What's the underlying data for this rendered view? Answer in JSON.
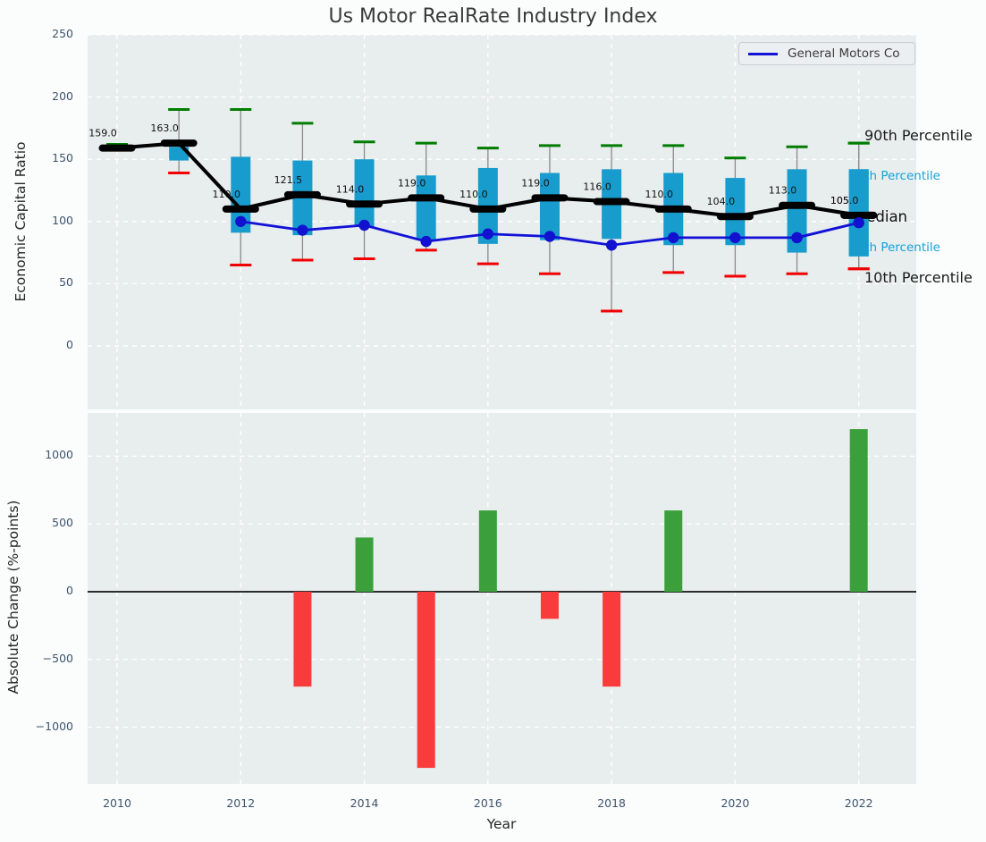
{
  "title": "Us Motor RealRate Industry Index",
  "top_chart": {
    "ylabel": "Economic Capital Ratio",
    "yticks": [
      {
        "v": 250,
        "label": "250"
      },
      {
        "v": 200,
        "label": "200"
      },
      {
        "v": 150,
        "label": "150"
      },
      {
        "v": 100,
        "label": "100"
      },
      {
        "v": 50,
        "label": "50"
      },
      {
        "v": 0,
        "label": "0"
      }
    ],
    "legend": {
      "label": "General Motors Co"
    },
    "right_labels": {
      "p90": "90th Percentile",
      "p75": "75th Percentile",
      "median": "Median",
      "p25": "25th Percentile",
      "p10": "10th Percentile"
    }
  },
  "bottom_chart": {
    "ylabel": "Absolute Change (%-points)",
    "xlabel": "Year",
    "yticks": [
      {
        "v": 1000,
        "label": "1000"
      },
      {
        "v": 500,
        "label": "500"
      },
      {
        "v": 0,
        "label": "0"
      },
      {
        "v": -500,
        "label": "−500"
      },
      {
        "v": -1000,
        "label": "−1000"
      }
    ],
    "xticks": [
      {
        "v": 2010,
        "label": "2010"
      },
      {
        "v": 2012,
        "label": "2012"
      },
      {
        "v": 2014,
        "label": "2014"
      },
      {
        "v": 2016,
        "label": "2016"
      },
      {
        "v": 2018,
        "label": "2018"
      },
      {
        "v": 2020,
        "label": "2020"
      },
      {
        "v": 2022,
        "label": "2022"
      }
    ]
  },
  "chart_data": [
    {
      "type": "boxplot+line",
      "title": "Us Motor RealRate Industry Index",
      "ylabel": "Economic Capital Ratio",
      "ylim": [
        -50,
        250
      ],
      "grid": true,
      "legend_position": "upper right",
      "x": [
        2010,
        2011,
        2012,
        2013,
        2014,
        2015,
        2016,
        2017,
        2018,
        2019,
        2020,
        2021,
        2022
      ],
      "series": [
        {
          "name": "90th Percentile",
          "role": "p90",
          "color": "#007d00",
          "values": [
            162,
            190,
            190,
            179,
            164,
            163,
            159,
            161,
            161,
            161,
            151,
            160,
            163
          ]
        },
        {
          "name": "75th Percentile",
          "role": "p75",
          "color": "#189ccd",
          "values": [
            null,
            160,
            152,
            149,
            150,
            137,
            143,
            139,
            142,
            139,
            135,
            142,
            142
          ]
        },
        {
          "name": "Median",
          "role": "median",
          "color": "#000000",
          "values": [
            159,
            163,
            110,
            121.5,
            114,
            119,
            110,
            119,
            116,
            110,
            104,
            113,
            105
          ],
          "labels": [
            "159.0",
            "163.0",
            "110.0",
            "121.5",
            "114.0",
            "119.0",
            "110.0",
            "119.0",
            "116.0",
            "110.0",
            "104.0",
            "113.0",
            "105.0"
          ]
        },
        {
          "name": "25th Percentile",
          "role": "p25",
          "color": "#189ccd",
          "values": [
            null,
            149,
            91,
            89,
            96,
            85,
            82,
            85,
            86,
            81,
            81,
            75,
            72
          ]
        },
        {
          "name": "10th Percentile",
          "role": "p10",
          "color": "#f20000",
          "values": [
            null,
            139,
            65,
            69,
            70,
            77,
            66,
            58,
            28,
            59,
            56,
            58,
            62
          ]
        },
        {
          "name": "General Motors Co",
          "role": "company",
          "color": "#1212d6",
          "values": [
            null,
            null,
            100,
            93,
            97,
            84,
            90,
            88,
            81,
            87,
            87,
            87,
            99
          ]
        }
      ]
    },
    {
      "type": "bar",
      "ylabel": "Absolute Change (%-points)",
      "xlabel": "Year",
      "ylim": [
        -1425,
        1325
      ],
      "grid": true,
      "baseline": 0,
      "positive_color": "#3ba03b",
      "negative_color": "#fa3b3b",
      "x": [
        2010,
        2011,
        2012,
        2013,
        2014,
        2015,
        2016,
        2017,
        2018,
        2019,
        2020,
        2021,
        2022
      ],
      "values": [
        null,
        null,
        null,
        -700,
        400,
        -1300,
        600,
        -200,
        -700,
        600,
        0,
        0,
        1200
      ]
    }
  ]
}
